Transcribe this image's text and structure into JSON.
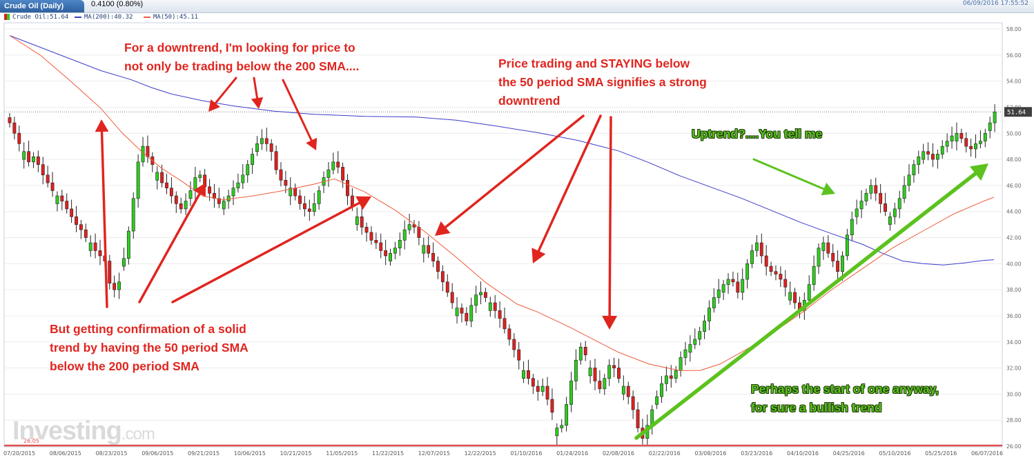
{
  "header": {
    "tab_label": "Crude Oil (Daily)",
    "change": "0.4100 (0.80%)",
    "timestamp": "06/09/2016 17:55:52"
  },
  "legend": {
    "price": "Crude Oil:51.64",
    "ma200": "MA(200):40.32",
    "ma50": "MA(50):45.11"
  },
  "colors": {
    "up": "#2ecc1f",
    "down": "#e02020",
    "wick": "#222222",
    "ma200": "#3b3bc9",
    "ma50": "#ef5a3a",
    "annotation_red": "#e0251f",
    "annotation_green": "#5cc21e",
    "support_line": "#e05050"
  },
  "annotations": {
    "top_left": [
      "For a downtrend, I'm looking for price to",
      "not only be trading below the 200 SMA...."
    ],
    "top_middle": [
      "Price trading and STAYING below",
      "the 50 period SMA signifies a strong",
      "downtrend"
    ],
    "bottom_left": [
      "But getting confirmation of a solid",
      "trend by having the 50 period SMA",
      "below the 200 period SMA"
    ],
    "uptrend": "Uptrend?....You tell me",
    "bottom_right": [
      "Perhaps the start of one anyway,",
      "for sure a bullish trend"
    ]
  },
  "watermark": {
    "brand": "Investing",
    "suffix": ".com"
  },
  "chart_data": {
    "type": "candlestick",
    "title": "Crude Oil (Daily)",
    "last_price": "51.64",
    "support_level": "26.05",
    "ylim": [
      26,
      58
    ],
    "yticks": [
      "58.00",
      "56.00",
      "54.00",
      "52.00",
      "50.00",
      "48.00",
      "46.00",
      "44.00",
      "42.00",
      "40.00",
      "38.00",
      "36.00",
      "34.00",
      "32.00",
      "30.00",
      "28.00",
      "26.00"
    ],
    "xticks": [
      "07/20/2015",
      "08/06/2015",
      "08/23/2015",
      "09/06/2015",
      "09/21/2015",
      "10/06/2015",
      "10/21/2015",
      "11/05/2015",
      "11/22/2015",
      "12/07/2015",
      "12/22/2015",
      "01/10/2016",
      "01/24/2016",
      "02/08/2016",
      "02/22/2016",
      "03/08/2016",
      "03/23/2016",
      "04/10/2016",
      "04/25/2016",
      "05/10/2016",
      "05/25/2016",
      "06/07/2016"
    ],
    "close_path": [
      50.8,
      50.0,
      49.2,
      48.6,
      47.8,
      48.2,
      47.6,
      46.8,
      46.2,
      45.6,
      45.2,
      44.8,
      44.2,
      43.6,
      43.0,
      42.6,
      42.0,
      41.6,
      41.0,
      40.6,
      40.2,
      38.5,
      38.0,
      38.6,
      40.4,
      42.5,
      45.0,
      47.8,
      49.0,
      48.2,
      47.6,
      47.0,
      46.2,
      45.8,
      45.2,
      44.6,
      44.2,
      44.8,
      45.6,
      46.6,
      46.8,
      45.9,
      45.4,
      45.0,
      44.6,
      44.8,
      45.2,
      45.8,
      46.2,
      46.8,
      47.6,
      48.4,
      49.2,
      49.6,
      49.2,
      48.6,
      47.2,
      46.4,
      46.0,
      45.8,
      45.2,
      44.6,
      44.2,
      44.0,
      44.6,
      45.6,
      46.6,
      47.2,
      47.8,
      47.4,
      46.4,
      45.2,
      44.4,
      43.6,
      42.8,
      42.4,
      41.8,
      41.6,
      41.0,
      40.6,
      40.8,
      41.2,
      41.8,
      42.6,
      43.0,
      42.8,
      42.0,
      41.4,
      40.8,
      40.2,
      39.4,
      38.6,
      37.8,
      37.0,
      36.6,
      36.2,
      35.6,
      36.8,
      37.6,
      37.8,
      37.4,
      37.0,
      36.4,
      35.8,
      35.0,
      34.2,
      33.4,
      32.6,
      31.8,
      31.2,
      30.6,
      30.2,
      30.6,
      29.6,
      28.6,
      27.4,
      27.6,
      29.2,
      31.0,
      32.6,
      33.6,
      33.0,
      32.0,
      31.0,
      30.4,
      31.2,
      32.2,
      32.0,
      31.2,
      30.6,
      29.8,
      28.8,
      27.4,
      26.6,
      27.6,
      28.8,
      29.8,
      30.8,
      31.4,
      31.2,
      31.8,
      32.8,
      33.4,
      33.8,
      34.2,
      34.8,
      35.6,
      36.6,
      37.4,
      38.0,
      38.4,
      38.8,
      38.6,
      37.8,
      38.8,
      40.0,
      41.0,
      41.6,
      40.6,
      39.8,
      39.4,
      39.2,
      38.8,
      38.2,
      37.8,
      37.0,
      36.4,
      37.2,
      38.4,
      39.8,
      41.2,
      41.6,
      40.8,
      40.2,
      39.4,
      40.6,
      42.2,
      43.4,
      44.2,
      44.8,
      45.4,
      46.0,
      45.4,
      44.6,
      44.0,
      43.6,
      44.2,
      45.0,
      46.0,
      46.8,
      47.6,
      48.2,
      48.6,
      48.4,
      48.0,
      48.4,
      49.0,
      49.4,
      49.8,
      50.0,
      49.6,
      49.0,
      48.8,
      49.2,
      49.4,
      50.0,
      50.8,
      51.64
    ],
    "ma200_path": [
      [
        0,
        57.5
      ],
      [
        3,
        56.6
      ],
      [
        6,
        55.7
      ],
      [
        9,
        54.8
      ],
      [
        12,
        54.1
      ],
      [
        14,
        53.5
      ],
      [
        16,
        53.0
      ],
      [
        19,
        52.5
      ],
      [
        22,
        52.1
      ],
      [
        26,
        51.7
      ],
      [
        30,
        51.45
      ],
      [
        35,
        51.3
      ],
      [
        40,
        51.25
      ],
      [
        44,
        51.0
      ],
      [
        48,
        50.55
      ],
      [
        52,
        50.05
      ],
      [
        56,
        49.45
      ],
      [
        60,
        48.65
      ],
      [
        63,
        47.75
      ],
      [
        66,
        46.75
      ],
      [
        69,
        45.9
      ],
      [
        72,
        45.05
      ],
      [
        75,
        44.1
      ],
      [
        78,
        43.15
      ],
      [
        81,
        42.3
      ],
      [
        84,
        41.5
      ],
      [
        86,
        40.8
      ],
      [
        88,
        40.2
      ],
      [
        90,
        40.0
      ],
      [
        92,
        39.9
      ],
      [
        94,
        40.05
      ],
      [
        96,
        40.25
      ],
      [
        97,
        40.3
      ]
    ],
    "ma50_path": [
      [
        0,
        57.5
      ],
      [
        3,
        56.0
      ],
      [
        6,
        54.0
      ],
      [
        9,
        51.9
      ],
      [
        11,
        50.1
      ],
      [
        13,
        48.6
      ],
      [
        15,
        47.3
      ],
      [
        17,
        46.3
      ],
      [
        19,
        45.2
      ],
      [
        21,
        44.9
      ],
      [
        24,
        45.2
      ],
      [
        27,
        45.6
      ],
      [
        30,
        46.1
      ],
      [
        32,
        46.5
      ],
      [
        35,
        45.5
      ],
      [
        38,
        44.1
      ],
      [
        41,
        42.4
      ],
      [
        44,
        40.5
      ],
      [
        47,
        38.5
      ],
      [
        50,
        36.9
      ],
      [
        52,
        36.3
      ],
      [
        55,
        35.2
      ],
      [
        57,
        34.4
      ],
      [
        60,
        33.2
      ],
      [
        63,
        32.3
      ],
      [
        66,
        31.8
      ],
      [
        68,
        31.8
      ],
      [
        70,
        32.3
      ],
      [
        73,
        33.6
      ],
      [
        75,
        34.6
      ],
      [
        78,
        36.2
      ],
      [
        81,
        38.0
      ],
      [
        84,
        39.6
      ],
      [
        87,
        41.2
      ],
      [
        90,
        42.5
      ],
      [
        93,
        43.8
      ],
      [
        96,
        44.8
      ],
      [
        97,
        45.1
      ]
    ]
  }
}
